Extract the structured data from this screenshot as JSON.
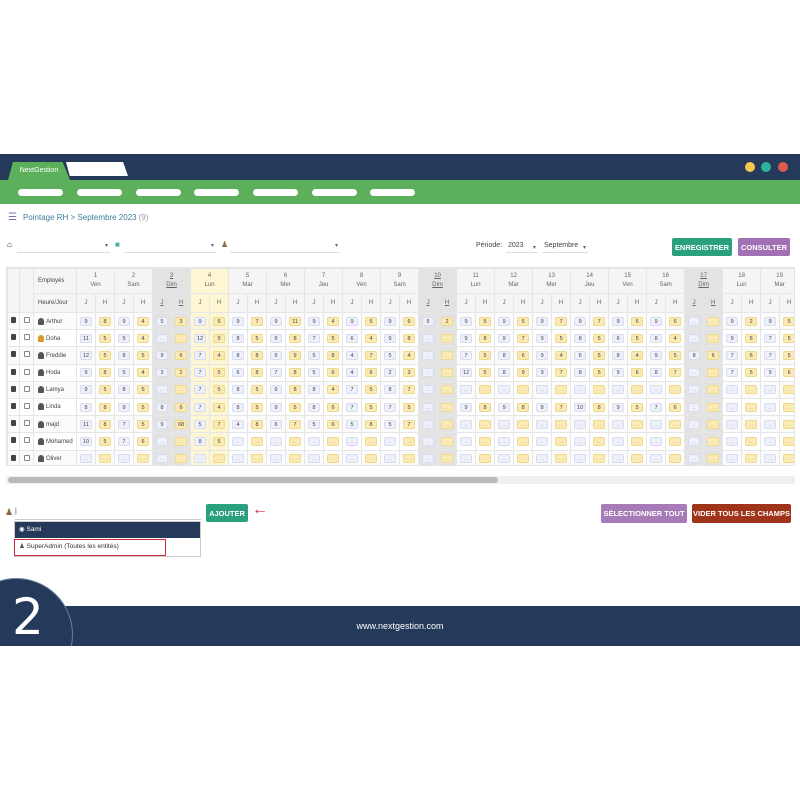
{
  "app": {
    "title": "NextGestion",
    "window_dots": [
      "#f3c94e",
      "#2bb39b",
      "#e05a4b"
    ],
    "nav_items": 7
  },
  "breadcrumb": {
    "text": "Pointage RH > Septembre 2023",
    "count": "(9)"
  },
  "filters": {
    "period_label": "Période:",
    "year": "2023",
    "month": "Septembre"
  },
  "buttons": {
    "save": "ENREGISTRER",
    "consult": "CONSULTER",
    "add": "AJOUTER",
    "select_all": "SÉLECTIONNER TOUT",
    "clear_all": "VIDER TOUS LES CHAMPS"
  },
  "colors": {
    "save": "#2aa07e",
    "consult": "#a170b5",
    "select_all": "#a67bb7",
    "clear_all": "#a0341a",
    "navy": "#253a5a",
    "green": "#5cb05c"
  },
  "table": {
    "employee_header": "Employés",
    "hours_header": "Heure/Jour",
    "j_label": "J",
    "h_label": "H",
    "empty_placeholder": "...",
    "days": [
      {
        "n": "1",
        "d": "Ven"
      },
      {
        "n": "2",
        "d": "Sam"
      },
      {
        "n": "3",
        "d": "Dim"
      },
      {
        "n": "4",
        "d": "Lun"
      },
      {
        "n": "5",
        "d": "Mar"
      },
      {
        "n": "6",
        "d": "Mer"
      },
      {
        "n": "7",
        "d": "Jeu"
      },
      {
        "n": "8",
        "d": "Ven"
      },
      {
        "n": "9",
        "d": "Sam"
      },
      {
        "n": "10",
        "d": "Dim"
      },
      {
        "n": "11",
        "d": "Lun"
      },
      {
        "n": "12",
        "d": "Mar"
      },
      {
        "n": "13",
        "d": "Mer"
      },
      {
        "n": "14",
        "d": "Jeu"
      },
      {
        "n": "15",
        "d": "Ven"
      },
      {
        "n": "16",
        "d": "Sam"
      },
      {
        "n": "17",
        "d": "Dim"
      },
      {
        "n": "18",
        "d": "Lun"
      },
      {
        "n": "19",
        "d": "Mar"
      }
    ],
    "highlighted_day": "4",
    "rows": [
      {
        "name": "Arthur",
        "gender": "m",
        "values": [
          [
            "9",
            "8"
          ],
          [
            "9",
            "4"
          ],
          [
            "5",
            "3"
          ],
          [
            "9",
            "6"
          ],
          [
            "9",
            "7"
          ],
          [
            "9",
            "11"
          ],
          [
            "9",
            "4"
          ],
          [
            "9",
            "5"
          ],
          [
            "9",
            "6"
          ],
          [
            "5",
            "2"
          ],
          [
            "9",
            "5"
          ],
          [
            "9",
            "5"
          ],
          [
            "9",
            "7"
          ],
          [
            "9",
            "7"
          ],
          [
            "9",
            "6"
          ],
          [
            "9",
            "6"
          ],
          [
            "",
            ""
          ],
          [
            "9",
            "2"
          ],
          [
            "9",
            "5"
          ]
        ]
      },
      {
        "name": "Doha",
        "gender": "f",
        "values": [
          [
            "11",
            "5"
          ],
          [
            "5",
            "4"
          ],
          [
            "",
            ""
          ],
          [
            "12",
            "9"
          ],
          [
            "8",
            "5"
          ],
          [
            "9",
            "8"
          ],
          [
            "7",
            "5"
          ],
          [
            "6",
            "4"
          ],
          [
            "9",
            "8"
          ],
          [
            "",
            ""
          ],
          [
            "9",
            "8"
          ],
          [
            "9",
            "7"
          ],
          [
            "9",
            "5"
          ],
          [
            "8",
            "5"
          ],
          [
            "6",
            "5"
          ],
          [
            "8",
            "4"
          ],
          [
            "",
            ""
          ],
          [
            "9",
            "8"
          ],
          [
            "7",
            "5"
          ]
        ]
      },
      {
        "name": "Freddie",
        "gender": "m",
        "values": [
          [
            "12",
            "5"
          ],
          [
            "8",
            "5"
          ],
          [
            "9",
            "6"
          ],
          [
            "7",
            "4"
          ],
          [
            "8",
            "8"
          ],
          [
            "5",
            "9"
          ],
          [
            "5",
            "8"
          ],
          [
            "4",
            "7"
          ],
          [
            "5",
            "4"
          ],
          [
            "",
            ""
          ],
          [
            "7",
            "5"
          ],
          [
            "8",
            "6"
          ],
          [
            "9",
            "4"
          ],
          [
            "6",
            "5"
          ],
          [
            "8",
            "4"
          ],
          [
            "9",
            "5"
          ],
          [
            "8",
            "6"
          ],
          [
            "7",
            "6"
          ],
          [
            "7",
            "5"
          ]
        ]
      },
      {
        "name": "Hoda",
        "gender": "m",
        "values": [
          [
            "9",
            "8"
          ],
          [
            "5",
            "4"
          ],
          [
            "3",
            "2"
          ],
          [
            "7",
            "5"
          ],
          [
            "6",
            "8"
          ],
          [
            "7",
            "8"
          ],
          [
            "5",
            "6"
          ],
          [
            "4",
            "6"
          ],
          [
            "2",
            "3"
          ],
          [
            "",
            ""
          ],
          [
            "12",
            "5"
          ],
          [
            "8",
            "9"
          ],
          [
            "9",
            "7"
          ],
          [
            "8",
            "5"
          ],
          [
            "9",
            "6"
          ],
          [
            "8",
            "7"
          ],
          [
            "",
            ""
          ],
          [
            "7",
            "5"
          ],
          [
            "9",
            "6"
          ]
        ]
      },
      {
        "name": "Lamya",
        "gender": "m",
        "values": [
          [
            "9",
            "5"
          ],
          [
            "8",
            "5"
          ],
          [
            "",
            ""
          ],
          [
            "7",
            "5"
          ],
          [
            "8",
            "5"
          ],
          [
            "9",
            "8"
          ],
          [
            "8",
            "4"
          ],
          [
            "7",
            "5"
          ],
          [
            "8",
            "7"
          ],
          [
            "",
            ""
          ],
          [
            "",
            ""
          ],
          [
            "",
            ""
          ],
          [
            "",
            ""
          ],
          [
            "",
            ""
          ],
          [
            "",
            ""
          ],
          [
            "",
            ""
          ],
          [
            "",
            ""
          ],
          [
            "",
            ""
          ],
          [
            "",
            ""
          ]
        ]
      },
      {
        "name": "Linda",
        "gender": "m",
        "values": [
          [
            "8",
            "8"
          ],
          [
            "9",
            "5"
          ],
          [
            "8",
            "6"
          ],
          [
            "7",
            "4"
          ],
          [
            "8",
            "5"
          ],
          [
            "9",
            "5"
          ],
          [
            "8",
            "6"
          ],
          [
            "7",
            "5"
          ],
          [
            "7",
            "5"
          ],
          [
            "",
            ""
          ],
          [
            "9",
            "8"
          ],
          [
            "9",
            "8"
          ],
          [
            "8",
            "7"
          ],
          [
            "10",
            "8"
          ],
          [
            "9",
            "5"
          ],
          [
            "7",
            "6"
          ],
          [
            "",
            ""
          ],
          [
            "",
            ""
          ],
          [
            "",
            ""
          ]
        ]
      },
      {
        "name": "majd",
        "gender": "m",
        "values": [
          [
            "11",
            "8"
          ],
          [
            "7",
            "5"
          ],
          [
            "9",
            "68"
          ],
          [
            "5",
            "7"
          ],
          [
            "4",
            "8"
          ],
          [
            "6",
            "7"
          ],
          [
            "5",
            "6"
          ],
          [
            "5",
            "8"
          ],
          [
            "5",
            "7"
          ],
          [
            "",
            ""
          ],
          [
            "",
            ""
          ],
          [
            "",
            ""
          ],
          [
            "",
            ""
          ],
          [
            "",
            ""
          ],
          [
            "",
            ""
          ],
          [
            "",
            ""
          ],
          [
            "",
            ""
          ],
          [
            "",
            ""
          ],
          [
            "",
            ""
          ]
        ]
      },
      {
        "name": "Mohamed",
        "gender": "m",
        "values": [
          [
            "10",
            "5"
          ],
          [
            "7",
            "6"
          ],
          [
            "",
            ""
          ],
          [
            "8",
            "5"
          ],
          [
            "",
            ""
          ],
          [
            "",
            ""
          ],
          [
            "",
            ""
          ],
          [
            "",
            ""
          ],
          [
            "",
            ""
          ],
          [
            "",
            ""
          ],
          [
            "",
            ""
          ],
          [
            "",
            ""
          ],
          [
            "",
            ""
          ],
          [
            "",
            ""
          ],
          [
            "",
            ""
          ],
          [
            "",
            ""
          ],
          [
            "",
            ""
          ],
          [
            "",
            ""
          ],
          [
            "",
            ""
          ]
        ]
      },
      {
        "name": "Oliver",
        "gender": "m",
        "values": [
          [
            "",
            ""
          ],
          [
            "",
            ""
          ],
          [
            "",
            ""
          ],
          [
            "",
            ""
          ],
          [
            "",
            ""
          ],
          [
            "",
            ""
          ],
          [
            "",
            ""
          ],
          [
            "",
            ""
          ],
          [
            "",
            ""
          ],
          [
            "",
            ""
          ],
          [
            "",
            ""
          ],
          [
            "",
            ""
          ],
          [
            "",
            ""
          ],
          [
            "",
            ""
          ],
          [
            "",
            ""
          ],
          [
            "",
            ""
          ],
          [
            "",
            ""
          ],
          [
            "",
            ""
          ],
          [
            "",
            ""
          ]
        ]
      }
    ]
  },
  "add_user": {
    "input_value": "",
    "options": [
      "Sami",
      "SuperAdmin (Toutes les entités)"
    ]
  },
  "footer": {
    "url": "www.nextgestion.com",
    "step": "2"
  }
}
